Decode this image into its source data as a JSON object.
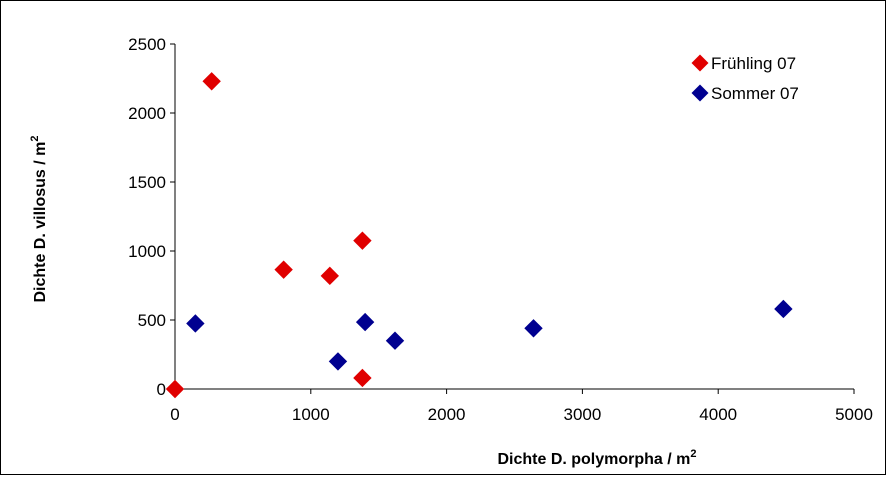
{
  "chart_data": {
    "type": "scatter",
    "xlabel": "Dichte D. polymorpha / m",
    "xlabel_sup": "2",
    "ylabel": "Dichte D. villosus / m",
    "ylabel_sup": "2",
    "xlim": [
      0,
      5000
    ],
    "ylim": [
      0,
      2500
    ],
    "xticks": [
      "0",
      "1000",
      "2000",
      "3000",
      "4000",
      "5000"
    ],
    "yticks": [
      "0",
      "500",
      "1000",
      "1500",
      "2000",
      "2500"
    ],
    "grid": false,
    "legend_position": "top-right",
    "series": [
      {
        "name": "Frühling 07",
        "color": "#e00000",
        "marker": "diamond",
        "points": [
          {
            "x": 0,
            "y": 0
          },
          {
            "x": 270,
            "y": 2230
          },
          {
            "x": 800,
            "y": 865
          },
          {
            "x": 1140,
            "y": 820
          },
          {
            "x": 1380,
            "y": 1075
          },
          {
            "x": 1380,
            "y": 80
          }
        ]
      },
      {
        "name": "Sommer 07",
        "color": "#000090",
        "marker": "diamond",
        "points": [
          {
            "x": 150,
            "y": 475
          },
          {
            "x": 1200,
            "y": 200
          },
          {
            "x": 1400,
            "y": 485
          },
          {
            "x": 1620,
            "y": 350
          },
          {
            "x": 2640,
            "y": 440
          },
          {
            "x": 4480,
            "y": 580
          }
        ]
      }
    ]
  }
}
